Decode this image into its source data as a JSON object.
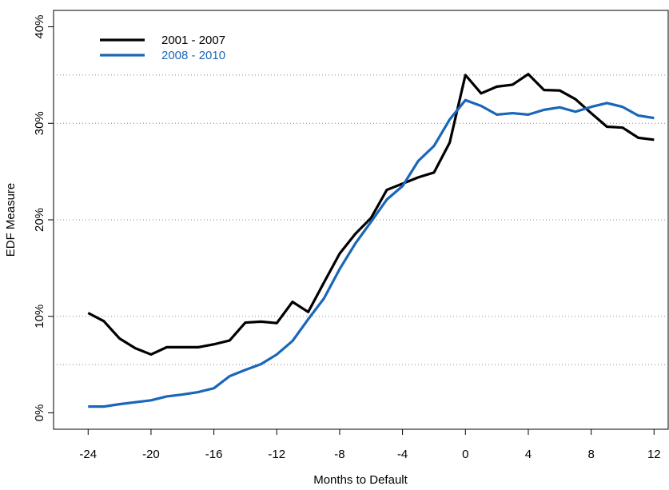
{
  "chart_data": {
    "type": "line",
    "x_label": "Months to Default",
    "y_label": "EDF Measure",
    "x": [
      -24,
      -23,
      -22,
      -21,
      -20,
      -19,
      -18,
      -17,
      -16,
      -15,
      -14,
      -13,
      -12,
      -11,
      -10,
      -9,
      -8,
      -7,
      -6,
      -5,
      -4,
      -3,
      -2,
      -1,
      0,
      1,
      2,
      3,
      4,
      5,
      6,
      7,
      8,
      9,
      10,
      11,
      12
    ],
    "series": [
      {
        "name": "2001 - 2007",
        "color": "#000000",
        "values": [
          10.35,
          9.5,
          7.7,
          6.7,
          6.05,
          6.8,
          6.8,
          6.8,
          7.1,
          7.5,
          9.35,
          9.45,
          9.3,
          11.5,
          10.45,
          13.5,
          16.5,
          18.55,
          20.2,
          23.1,
          23.75,
          24.4,
          24.9,
          28.0,
          35.0,
          33.1,
          33.8,
          34.0,
          35.1,
          33.45,
          33.4,
          32.5,
          31.05,
          29.65,
          29.55,
          28.5,
          28.3
        ]
      },
      {
        "name": "2008 - 2010",
        "color": "#1a66b8",
        "values": [
          0.65,
          0.65,
          0.9,
          1.1,
          1.3,
          1.7,
          1.9,
          2.15,
          2.55,
          3.8,
          4.45,
          5.05,
          6.05,
          7.45,
          9.7,
          11.85,
          14.9,
          17.55,
          19.8,
          22.1,
          23.5,
          26.1,
          27.65,
          30.4,
          32.4,
          31.8,
          30.9,
          31.05,
          30.9,
          31.4,
          31.65,
          31.2,
          31.7,
          32.1,
          31.7,
          30.8,
          30.55
        ]
      }
    ],
    "xlim": [
      -26.2,
      12.9
    ],
    "ylim": [
      -1.7,
      41.7
    ],
    "xticks": [
      -24,
      -20,
      -16,
      -12,
      -8,
      -4,
      0,
      4,
      8,
      12
    ],
    "yticks": [
      {
        "value": 0,
        "label": "0%"
      },
      {
        "value": 10,
        "label": "10%"
      },
      {
        "value": 20,
        "label": "20%"
      },
      {
        "value": 30,
        "label": "30%"
      },
      {
        "value": 40,
        "label": "40%"
      }
    ],
    "grid_lines": [
      5,
      10,
      20,
      30,
      35
    ],
    "legend": "top-left"
  }
}
